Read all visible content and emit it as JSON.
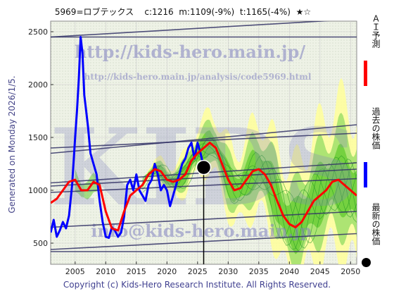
{
  "header": {
    "code_name": "5969=ロブテックス",
    "close": "c:1216",
    "median": "m:1109(-9%)",
    "target": "t:1165(-4%)",
    "stars": "★☆"
  },
  "watermarks": {
    "url_main": "http://kids-hero.main.jp/",
    "url_analysis": "http://kids-hero.main.jp/analysis/code5969.html",
    "logo": "KIDS",
    "email": "info@kids-hero.main.jp"
  },
  "side_label": "Generated on Monday 2026/1/5.",
  "footer": "Copyright (c) Kids-Hero Research Institute. All Rights Reserved.",
  "legend": {
    "ai_forecast": "ＡＩ予測",
    "past_price": "過去の株価",
    "latest_price": "最新の株価"
  },
  "colors": {
    "ai_forecast": "#ff0000",
    "past_price": "#0000ff",
    "latest": "#000000",
    "band_outer": "#ffff99",
    "band_inner": "#66cc33",
    "trend_lines": "#333366"
  },
  "chart_data": {
    "type": "line",
    "xlim": [
      2001,
      2051
    ],
    "ylim": [
      300,
      2600
    ],
    "x_ticks": [
      2005,
      2010,
      2015,
      2020,
      2025,
      2030,
      2035,
      2040,
      2045,
      2050
    ],
    "y_ticks": [
      500,
      1000,
      1500,
      2000,
      2500
    ],
    "grid": true,
    "latest_point": {
      "x": 2026.0,
      "y": 1216
    },
    "series": [
      {
        "name": "過去の株価",
        "x": [
          2001.0,
          2001.5,
          2002.0,
          2002.5,
          2003.0,
          2003.5,
          2004.0,
          2004.5,
          2005.0,
          2005.3,
          2005.6,
          2005.9,
          2006.2,
          2006.5,
          2006.8,
          2007.1,
          2007.5,
          2008.0,
          2008.5,
          2009.0,
          2009.5,
          2010.0,
          2010.5,
          2011.0,
          2011.5,
          2012.0,
          2012.5,
          2013.0,
          2013.5,
          2014.0,
          2014.5,
          2015.0,
          2015.5,
          2016.0,
          2016.5,
          2017.0,
          2017.5,
          2018.0,
          2018.5,
          2019.0,
          2019.5,
          2020.0,
          2020.5,
          2021.0,
          2021.5,
          2022.0,
          2022.5,
          2023.0,
          2023.5,
          2024.0,
          2024.5,
          2025.0,
          2025.5,
          2026.0
        ],
        "y": [
          600,
          720,
          560,
          620,
          700,
          640,
          760,
          1050,
          1500,
          1750,
          2050,
          2450,
          2300,
          1900,
          1750,
          1600,
          1350,
          1250,
          1150,
          900,
          700,
          560,
          550,
          650,
          620,
          560,
          600,
          750,
          1050,
          1100,
          1000,
          1150,
          1000,
          950,
          900,
          1050,
          1100,
          1250,
          1150,
          1000,
          1050,
          1000,
          850,
          950,
          1050,
          1150,
          1250,
          1300,
          1400,
          1450,
          1300,
          1450,
          1350,
          1216
        ]
      },
      {
        "name": "ＡＩ予測",
        "x": [
          2001.0,
          2002.0,
          2003.0,
          2004.0,
          2005.0,
          2006.0,
          2007.0,
          2008.0,
          2009.0,
          2010.0,
          2011.0,
          2012.0,
          2013.0,
          2014.0,
          2015.0,
          2016.0,
          2017.0,
          2018.0,
          2019.0,
          2020.0,
          2021.0,
          2022.0,
          2023.0,
          2024.0,
          2025.0,
          2026.0,
          2027.0,
          2028.0,
          2029.0,
          2030.0,
          2031.0,
          2032.0,
          2033.0,
          2034.0,
          2035.0,
          2036.0,
          2037.0,
          2038.0,
          2039.0,
          2040.0,
          2041.0,
          2042.0,
          2043.0,
          2044.0,
          2045.0,
          2046.0,
          2047.0,
          2048.0,
          2049.0,
          2050.0,
          2051.0
        ],
        "y": [
          880,
          920,
          1000,
          1080,
          1100,
          1000,
          1000,
          1080,
          1050,
          800,
          640,
          620,
          800,
          950,
          1000,
          1050,
          1150,
          1200,
          1180,
          1100,
          1080,
          1100,
          1150,
          1280,
          1350,
          1400,
          1450,
          1400,
          1250,
          1100,
          1000,
          1020,
          1100,
          1180,
          1200,
          1150,
          1050,
          900,
          760,
          680,
          650,
          700,
          800,
          900,
          950,
          1000,
          1080,
          1100,
          1050,
          1000,
          950
        ]
      }
    ]
  }
}
